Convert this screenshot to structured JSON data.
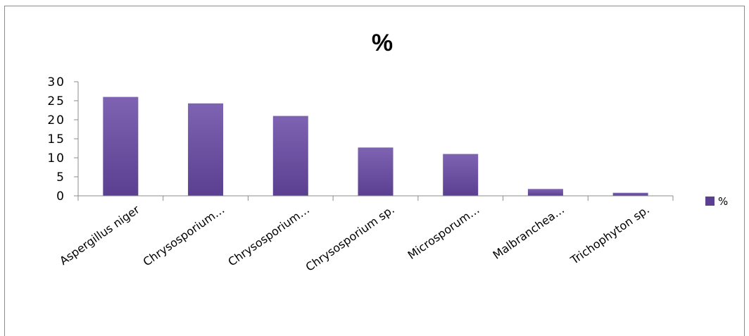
{
  "chart_data": {
    "type": "bar",
    "title": "%",
    "categories": [
      "Aspergillus niger",
      "Chrysosporium…",
      "Chrysosporium…",
      "Chrysosporium sp.",
      "Microsporum…",
      "Malbranchea…",
      "Trichophyton sp."
    ],
    "series": [
      {
        "name": "%",
        "values": [
          26,
          24.3,
          21,
          12.7,
          11,
          1.8,
          0.8
        ]
      }
    ],
    "ylim": [
      0,
      30
    ],
    "yticks": [
      "0",
      "5",
      "10",
      "15",
      "20",
      "25",
      "30"
    ],
    "xlabel": "",
    "ylabel": "",
    "grid": false,
    "legend_position": "right",
    "colors": {
      "bar_top": "#7e63b3",
      "bar_bottom": "#5b3f90",
      "axis": "#8c8c8c"
    }
  }
}
